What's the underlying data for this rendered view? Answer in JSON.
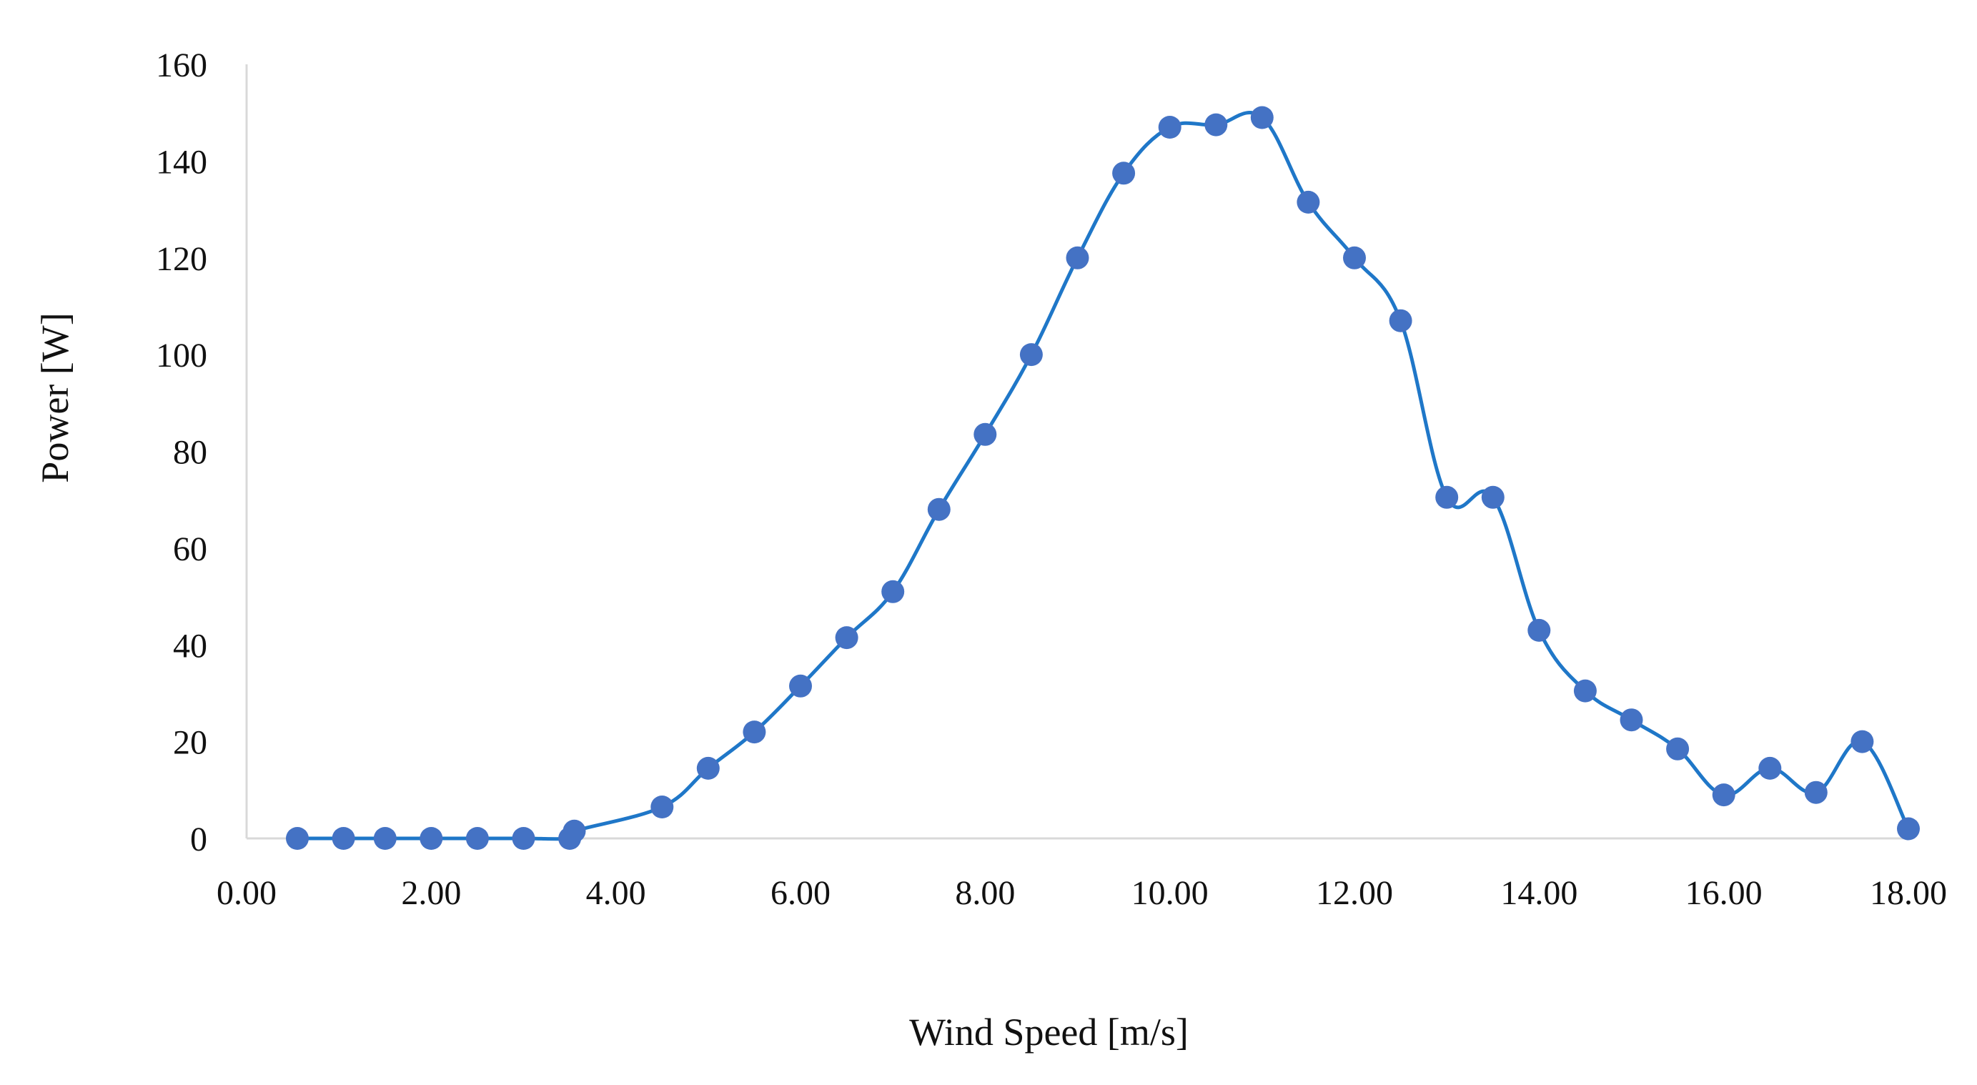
{
  "chart_data": {
    "type": "line",
    "title": "",
    "xlabel": "Wind Speed [m/s]",
    "ylabel": "Power [W]",
    "xlim": [
      0,
      18
    ],
    "ylim": [
      0,
      160
    ],
    "x_ticks": [
      "0.00",
      "2.00",
      "4.00",
      "6.00",
      "8.00",
      "10.00",
      "12.00",
      "14.00",
      "16.00",
      "18.00"
    ],
    "x_tick_values": [
      0,
      2,
      4,
      6,
      8,
      10,
      12,
      14,
      16,
      18
    ],
    "y_ticks": [
      "0",
      "20",
      "40",
      "60",
      "80",
      "100",
      "120",
      "140",
      "160"
    ],
    "y_tick_values": [
      0,
      20,
      40,
      60,
      80,
      100,
      120,
      140,
      160
    ],
    "grid": false,
    "colors": {
      "series": "#1f77c8",
      "marker": "#4472c4",
      "axis": "#d9d9d9"
    },
    "series": [
      {
        "name": "Power",
        "smooth": true,
        "marker": "circle",
        "x": [
          0.55,
          1.05,
          1.5,
          2.0,
          2.5,
          3.0,
          3.5,
          3.55,
          4.5,
          5.0,
          5.5,
          6.0,
          6.5,
          7.0,
          7.5,
          8.0,
          8.5,
          9.0,
          9.5,
          10.0,
          10.5,
          11.0,
          11.5,
          12.0,
          12.5,
          13.0,
          13.5,
          14.0,
          14.5,
          15.0,
          15.5,
          16.0,
          16.5,
          17.0,
          17.5,
          18.0
        ],
        "values": [
          0,
          0,
          0,
          0,
          0,
          0,
          0,
          1.5,
          6.5,
          14.5,
          22,
          31.5,
          41.5,
          51,
          68,
          83.5,
          100,
          120,
          137.5,
          147,
          147.5,
          149,
          131.5,
          120,
          107,
          70.5,
          70.5,
          43,
          30.5,
          24.5,
          18.5,
          9,
          14.5,
          9.5,
          20,
          2
        ]
      }
    ]
  }
}
